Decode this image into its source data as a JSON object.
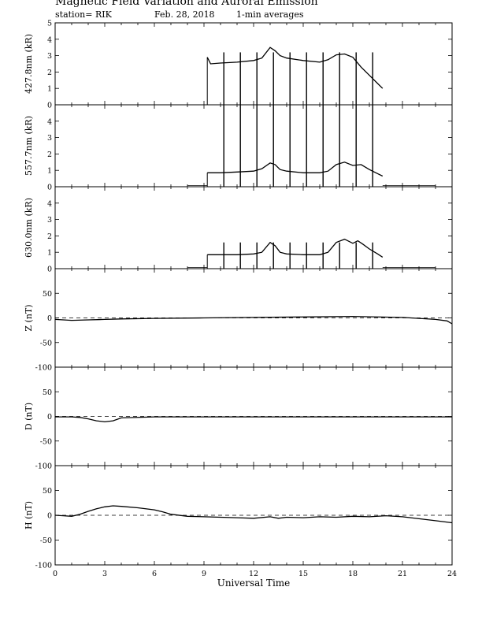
{
  "header": {
    "title": "Magnetic Field Variation and Auroral Emission",
    "station": "station= RIK",
    "date": "Feb. 28, 2018",
    "averaging": "1-min averages"
  },
  "colors": {
    "axes": "#000000",
    "trace": "#000000",
    "background": "#ffffff"
  },
  "chart_data": [
    {
      "type": "line",
      "ylabel": "427.8nm (kR)",
      "ylim": [
        0,
        5
      ],
      "yticks": [
        0,
        1,
        2,
        3,
        4,
        5
      ],
      "xlim": [
        0,
        24
      ],
      "x": [
        9.2,
        9.4,
        10,
        11,
        12,
        12.5,
        13,
        13.3,
        13.6,
        14,
        15,
        16,
        16.5,
        17,
        17.5,
        18,
        18.5,
        19,
        19.5,
        19.8
      ],
      "values": [
        2.9,
        2.5,
        2.55,
        2.6,
        2.7,
        2.85,
        3.5,
        3.3,
        3.0,
        2.85,
        2.7,
        2.6,
        2.75,
        3.05,
        3.1,
        2.9,
        2.3,
        1.8,
        1.3,
        1.0
      ],
      "spikes_x": [
        10.2,
        11.2,
        12.2,
        13.2,
        14.2,
        15.2,
        16.2,
        17.2,
        18.2,
        19.2
      ],
      "spike_max": 3.2
    },
    {
      "type": "line",
      "ylabel": "557.7nm (kR)",
      "ylim": [
        0,
        5
      ],
      "yticks": [
        0,
        1,
        2,
        3,
        4
      ],
      "xlim": [
        0,
        24
      ],
      "x": [
        9.2,
        10,
        11,
        12,
        12.5,
        13,
        13.3,
        13.6,
        14,
        15,
        16,
        16.5,
        17,
        17.5,
        18,
        18.5,
        19,
        19.5,
        19.8
      ],
      "values": [
        0.85,
        0.85,
        0.9,
        0.95,
        1.1,
        1.45,
        1.35,
        1.05,
        0.95,
        0.85,
        0.85,
        0.95,
        1.35,
        1.5,
        1.3,
        1.35,
        1.05,
        0.8,
        0.65
      ],
      "spikes_x": [
        10.2,
        11.2,
        12.2,
        13.2,
        14.2,
        15.2,
        16.2,
        17.2,
        18.2,
        19.2
      ],
      "spike_max": 5,
      "baseline_segments": [
        [
          8,
          9.2
        ],
        [
          19.8,
          23
        ]
      ]
    },
    {
      "type": "line",
      "ylabel": "630.0nm (kR)",
      "ylim": [
        0,
        5
      ],
      "yticks": [
        0,
        1,
        2,
        3,
        4
      ],
      "xlim": [
        0,
        24
      ],
      "x": [
        9.2,
        10,
        11,
        12,
        12.5,
        13,
        13.3,
        13.6,
        14,
        15,
        16,
        16.5,
        17,
        17.5,
        18,
        18.3,
        18.6,
        19,
        19.5,
        19.8
      ],
      "values": [
        0.85,
        0.85,
        0.85,
        0.9,
        1.0,
        1.6,
        1.4,
        1.0,
        0.9,
        0.85,
        0.85,
        1.0,
        1.6,
        1.8,
        1.55,
        1.7,
        1.5,
        1.2,
        0.9,
        0.7
      ],
      "spikes_x": [
        10.2,
        11.2,
        12.2,
        13.2,
        14.2,
        15.2,
        16.2,
        17.2,
        18.2,
        19.2
      ],
      "spike_max": 1.6,
      "baseline_segments": [
        [
          8,
          9.2
        ],
        [
          19.8,
          23
        ]
      ]
    },
    {
      "type": "line",
      "ylabel": "Z (nT)",
      "ylim": [
        -100,
        100
      ],
      "yticks": [
        -100,
        -50,
        0,
        50
      ],
      "xlim": [
        0,
        24
      ],
      "reference_line": 0,
      "x": [
        0,
        1,
        2,
        3,
        4,
        6,
        9,
        12,
        15,
        18,
        21,
        23,
        23.7,
        24
      ],
      "values": [
        -3,
        -5,
        -4,
        -3,
        -2,
        -1,
        0,
        1,
        2,
        3,
        1,
        -3,
        -6,
        -12
      ]
    },
    {
      "type": "line",
      "ylabel": "D (nT)",
      "ylim": [
        -100,
        100
      ],
      "yticks": [
        -100,
        -50,
        0,
        50
      ],
      "xlim": [
        0,
        24
      ],
      "reference_line": 0,
      "x": [
        0,
        1,
        1.5,
        2,
        2.5,
        3,
        3.5,
        4,
        6,
        9,
        12,
        15,
        18,
        21,
        24
      ],
      "values": [
        -1,
        -1,
        -2,
        -5,
        -9,
        -11,
        -9,
        -3,
        -1,
        -1,
        -1,
        -1,
        -1,
        -1,
        -1
      ]
    },
    {
      "type": "line",
      "ylabel": "H (nT)",
      "ylim": [
        -100,
        100
      ],
      "yticks": [
        -100,
        -50,
        0,
        50
      ],
      "xlim": [
        0,
        24
      ],
      "reference_line": 0,
      "xlabel": "Universal Time",
      "xticks": [
        0,
        3,
        6,
        9,
        12,
        15,
        18,
        21,
        24
      ],
      "x": [
        0,
        0.5,
        1,
        1.5,
        2,
        2.5,
        3,
        3.5,
        4,
        5,
        6,
        6.5,
        7,
        8,
        9,
        10,
        11,
        12,
        13,
        13.5,
        14,
        15,
        16,
        17,
        18,
        19,
        20,
        21,
        22,
        23,
        24
      ],
      "values": [
        0,
        -1,
        -2,
        2,
        8,
        13,
        17,
        19,
        18,
        15,
        11,
        7,
        2,
        -2,
        -3,
        -4,
        -5,
        -6,
        -3,
        -6,
        -4,
        -5,
        -3,
        -4,
        -2,
        -3,
        -1,
        -3,
        -7,
        -11,
        -15
      ]
    }
  ]
}
